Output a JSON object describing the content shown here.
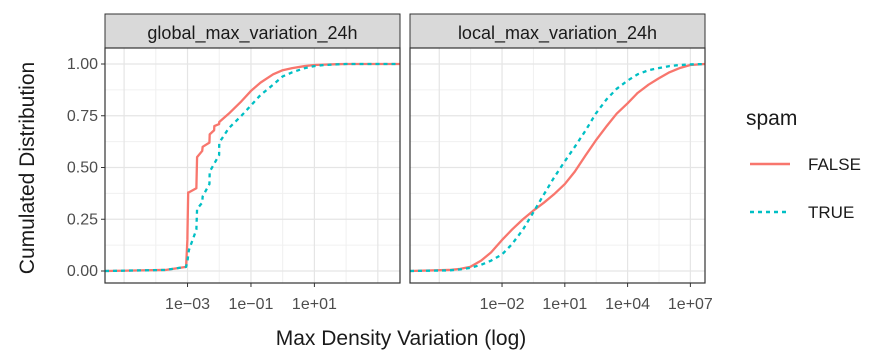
{
  "chart_data": {
    "type": "line",
    "xlabel": "Max Density Variation (log)",
    "ylabel": "Cumulated Distribution",
    "y_ticks": [
      "0.00",
      "0.25",
      "0.50",
      "0.75",
      "1.00"
    ],
    "ylim": [
      0,
      1
    ],
    "x_scale": "log10",
    "grid": true,
    "legend": {
      "title": "spam",
      "position": "right",
      "entries": [
        {
          "name": "FALSE",
          "color": "#F8766D",
          "linetype": "solid"
        },
        {
          "name": "TRUE",
          "color": "#00BFC4",
          "linetype": "dashed"
        }
      ]
    },
    "panels": [
      {
        "title": "global_max_variation_24h",
        "xlim": [
          2.5e-06,
          5000
        ],
        "x_ticks": [
          "1e−03",
          "1e−01",
          "1e+01"
        ],
        "x_tick_values": [
          0.001,
          0.1,
          10
        ],
        "series": [
          {
            "name": "FALSE",
            "x": [
              2.5e-06,
              0.0002,
              0.0009,
              0.00099,
              0.001,
              0.00105,
              0.0011,
              0.0019,
              0.002,
              0.0029,
              0.003,
              0.0049,
              0.005,
              0.0069,
              0.007,
              0.0099,
              0.01,
              0.02,
              0.05,
              0.1,
              0.2,
              0.5,
              1,
              2,
              5,
              10,
              20,
              50,
              100,
              5000
            ],
            "y": [
              0.0,
              0.005,
              0.02,
              0.15,
              0.2,
              0.38,
              0.38,
              0.4,
              0.55,
              0.58,
              0.6,
              0.62,
              0.66,
              0.68,
              0.7,
              0.71,
              0.72,
              0.76,
              0.82,
              0.87,
              0.91,
              0.95,
              0.97,
              0.98,
              0.99,
              0.995,
              0.997,
              0.999,
              1.0,
              1.0
            ]
          },
          {
            "name": "TRUE",
            "x": [
              2.5e-06,
              0.0002,
              0.0009,
              0.001,
              0.0011,
              0.0019,
              0.002,
              0.0029,
              0.003,
              0.0049,
              0.005,
              0.0099,
              0.01,
              0.02,
              0.05,
              0.1,
              0.2,
              0.5,
              1,
              2,
              5,
              10,
              20,
              50,
              100,
              5000
            ],
            "y": [
              0.0,
              0.005,
              0.02,
              0.05,
              0.1,
              0.2,
              0.3,
              0.33,
              0.36,
              0.42,
              0.48,
              0.56,
              0.62,
              0.69,
              0.75,
              0.8,
              0.85,
              0.9,
              0.94,
              0.96,
              0.98,
              0.99,
              0.995,
              0.998,
              1.0,
              1.0
            ]
          }
        ]
      },
      {
        "title": "local_max_variation_24h",
        "xlim": [
          4e-07,
          50000000
        ],
        "x_ticks": [
          "1e−02",
          "1e+01",
          "1e+04",
          "1e+07"
        ],
        "x_tick_values": [
          0.01,
          10,
          10000,
          10000000
        ],
        "series": [
          {
            "name": "FALSE",
            "x": [
              4e-07,
              3e-05,
              0.0001,
              0.0003,
              0.001,
              0.003,
              0.01,
              0.03,
              0.1,
              0.3,
              1,
              3,
              10,
              30,
              100,
              300,
              1000,
              3000,
              10000,
              30000,
              100000,
              300000,
              1000000,
              3000000,
              10000000,
              50000000
            ],
            "y": [
              0.0,
              0.005,
              0.01,
              0.02,
              0.05,
              0.09,
              0.15,
              0.2,
              0.25,
              0.29,
              0.33,
              0.37,
              0.42,
              0.48,
              0.56,
              0.63,
              0.7,
              0.76,
              0.81,
              0.86,
              0.9,
              0.93,
              0.96,
              0.98,
              0.995,
              1.0
            ]
          },
          {
            "name": "TRUE",
            "x": [
              4e-07,
              3e-05,
              0.0001,
              0.0003,
              0.001,
              0.003,
              0.01,
              0.03,
              0.1,
              0.3,
              1,
              3,
              10,
              30,
              100,
              300,
              1000,
              3000,
              10000,
              30000,
              100000,
              300000,
              1000000,
              3000000,
              10000000,
              50000000
            ],
            "y": [
              0.0,
              0.003,
              0.008,
              0.015,
              0.03,
              0.05,
              0.08,
              0.13,
              0.2,
              0.28,
              0.37,
              0.45,
              0.53,
              0.6,
              0.68,
              0.76,
              0.83,
              0.88,
              0.92,
              0.95,
              0.97,
              0.98,
              0.99,
              0.995,
              0.998,
              1.0
            ]
          }
        ]
      }
    ]
  }
}
